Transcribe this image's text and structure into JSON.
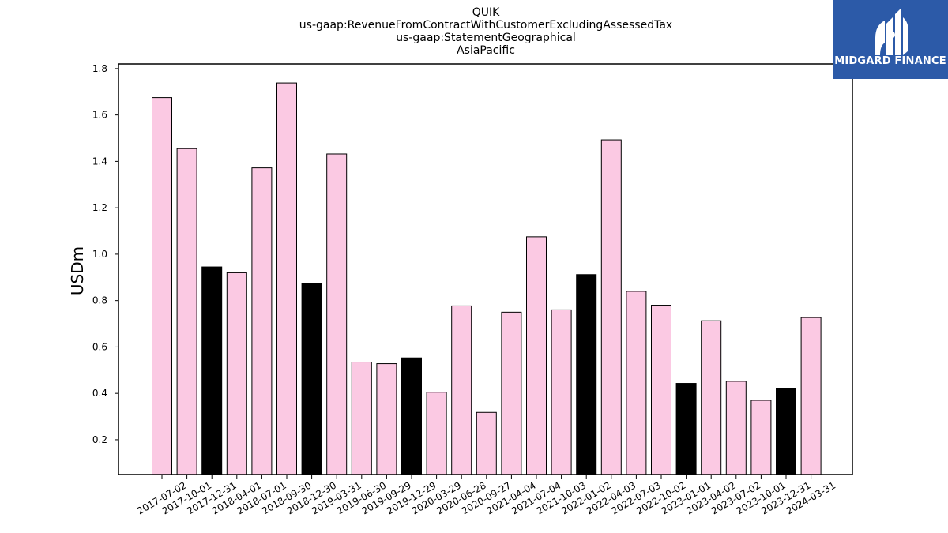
{
  "chart_data": {
    "type": "bar",
    "title_lines": [
      "QUIK",
      "us-gaap:RevenueFromContractWithCustomerExcludingAssessedTax",
      "us-gaap:StatementGeographical",
      "AsiaPacific"
    ],
    "xlabel": "",
    "ylabel": "USDm",
    "ylim": [
      0.05,
      1.82
    ],
    "yticks": [
      0.2,
      0.4,
      0.6,
      0.8,
      1.0,
      1.2,
      1.4,
      1.6,
      1.8
    ],
    "ytick_labels": [
      "0.2",
      "0.4",
      "0.6",
      "0.8",
      "1.0",
      "1.2",
      "1.4",
      "1.6",
      "1.8"
    ],
    "categories": [
      "2017-07-02",
      "2017-10-01",
      "2017-12-31",
      "2018-04-01",
      "2018-07-01",
      "2018-09-30",
      "2018-12-30",
      "2019-03-31",
      "2019-06-30",
      "2019-09-29",
      "2019-12-29",
      "2020-03-29",
      "2020-06-28",
      "2020-09-27",
      "2021-04-04",
      "2021-07-04",
      "2021-10-03",
      "2022-01-02",
      "2022-04-03",
      "2022-07-03",
      "2022-10-02",
      "2023-01-01",
      "2023-04-02",
      "2023-07-02",
      "2023-10-01",
      "2023-12-31",
      "2024-03-31"
    ],
    "values": [
      1.675,
      1.455,
      0.945,
      0.92,
      1.372,
      1.738,
      0.873,
      1.432,
      0.535,
      0.528,
      0.553,
      0.405,
      0.777,
      0.318,
      0.75,
      1.075,
      0.76,
      0.912,
      1.493,
      0.84,
      0.78,
      0.443,
      0.713,
      0.452,
      0.37,
      0.422,
      0.727
    ],
    "highlighted": [
      false,
      false,
      true,
      false,
      false,
      false,
      true,
      false,
      false,
      false,
      true,
      false,
      false,
      false,
      false,
      false,
      false,
      true,
      false,
      false,
      false,
      true,
      false,
      false,
      false,
      true,
      false
    ],
    "colors": {
      "normal": "#fbc9e3",
      "highlight": "#000000",
      "edge": "#000000"
    },
    "grid": false,
    "legend": "none"
  },
  "logo": {
    "text": "MIDGARD FINANCE",
    "background": "#2c5aa8",
    "foreground": "#ffffff"
  }
}
